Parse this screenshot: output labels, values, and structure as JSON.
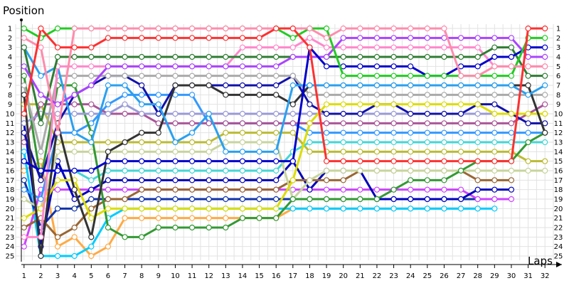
{
  "chart_data": {
    "type": "line",
    "ylabel": "Position",
    "xlabel": "Laps",
    "xlim": [
      0.5,
      32.5
    ],
    "ylim": [
      1,
      25
    ],
    "y_inverted": true,
    "grid": true,
    "x_ticks": [
      "1",
      "2",
      "3",
      "4",
      "5",
      "6",
      "7",
      "8",
      "9",
      "10",
      "11",
      "12",
      "13",
      "14",
      "15",
      "16",
      "17",
      "18",
      "19",
      "20",
      "21",
      "22",
      "23",
      "24",
      "25",
      "26",
      "27",
      "28",
      "29",
      "30",
      "31",
      "32"
    ],
    "y_ticks": [
      "1",
      "2",
      "3",
      "4",
      "5",
      "6",
      "7",
      "8",
      "9",
      "10",
      "11",
      "12",
      "13",
      "14",
      "15",
      "16",
      "17",
      "18",
      "19",
      "20",
      "21",
      "22",
      "23",
      "24",
      "25"
    ],
    "series": [
      {
        "color": "#ff3030",
        "start": 0,
        "positions": [
          10,
          1,
          3,
          3,
          3,
          2,
          2,
          2,
          2,
          2,
          2,
          2,
          2,
          2,
          2,
          1,
          1,
          3,
          15,
          15,
          15,
          15,
          15,
          15,
          15,
          15,
          15,
          15,
          15,
          15,
          1,
          1
        ]
      },
      {
        "color": "#ff8cad",
        "start": 0,
        "positions": [
          2,
          3,
          12,
          1,
          1,
          1,
          1,
          1,
          1,
          1,
          1,
          1,
          1,
          1,
          1,
          1,
          1,
          1,
          2,
          1,
          1,
          1,
          1,
          1,
          1,
          1,
          6,
          6,
          5,
          5,
          5,
          5
        ]
      },
      {
        "color": "#22cc22",
        "start": 0,
        "positions": [
          1,
          2,
          1,
          1,
          1,
          1,
          1,
          1,
          1,
          1,
          1,
          1,
          1,
          1,
          1,
          1,
          2,
          1,
          1,
          6,
          6,
          6,
          6,
          6,
          6,
          6,
          6,
          6,
          6,
          6,
          2,
          2
        ]
      },
      {
        "color": "#0000cc",
        "start": 0,
        "positions": [
          15,
          16,
          16,
          16,
          16,
          15,
          15,
          15,
          15,
          15,
          15,
          15,
          15,
          15,
          15,
          15,
          15,
          3,
          5,
          5,
          5,
          5,
          5,
          5,
          6,
          6,
          5,
          5,
          4,
          4,
          3,
          3
        ]
      },
      {
        "color": "#aa44ff",
        "start": 0,
        "positions": [
          5,
          8,
          9,
          8,
          7,
          5,
          5,
          5,
          5,
          5,
          5,
          5,
          5,
          5,
          5,
          5,
          4,
          4,
          4,
          2,
          2,
          2,
          2,
          2,
          2,
          2,
          2,
          2,
          2,
          2,
          4,
          4
        ]
      },
      {
        "color": "#2e7d32",
        "start": 0,
        "positions": [
          3,
          11,
          4,
          4,
          4,
          4,
          4,
          4,
          4,
          4,
          4,
          4,
          4,
          4,
          4,
          4,
          4,
          4,
          4,
          4,
          4,
          4,
          4,
          4,
          4,
          4,
          4,
          4,
          3,
          3,
          6,
          6
        ]
      },
      {
        "color": "#ff88cc",
        "start": 0,
        "positions": [
          23,
          23,
          5,
          5,
          5,
          5,
          5,
          5,
          5,
          5,
          5,
          5,
          5,
          3,
          3,
          3,
          3,
          2,
          3,
          3,
          3,
          3,
          3,
          3,
          3,
          3,
          3,
          3,
          5,
          5,
          5,
          5
        ]
      },
      {
        "color": "#2aa0f0",
        "start": 0,
        "positions": [
          3,
          6,
          5,
          12,
          13,
          7,
          7,
          9,
          9,
          13,
          12,
          10,
          14,
          14,
          14,
          14,
          7,
          7,
          7,
          7,
          7,
          7,
          7,
          7,
          7,
          7,
          7,
          7,
          7,
          7,
          8,
          7
        ]
      },
      {
        "color": "#333333",
        "start": 0,
        "positions": [
          8,
          25,
          11,
          18,
          23,
          14,
          13,
          12,
          12,
          7,
          7,
          7,
          8,
          8,
          8,
          8,
          9,
          7,
          7,
          7,
          7,
          7,
          7,
          7,
          7,
          7,
          7,
          7,
          7,
          7,
          7,
          12
        ]
      },
      {
        "color": "#aaaaaa",
        "start": 0,
        "positions": [
          7,
          14,
          6,
          6,
          6,
          6,
          6,
          6,
          6,
          6,
          6,
          6,
          6,
          6,
          6,
          6,
          6,
          8,
          8,
          8,
          8,
          8,
          8,
          8,
          8,
          8,
          8,
          8,
          8,
          8,
          8,
          8
        ]
      },
      {
        "color": "#dddd00",
        "start": 0,
        "positions": [
          21,
          20,
          17,
          17,
          21,
          20,
          20,
          20,
          20,
          20,
          20,
          20,
          20,
          20,
          20,
          20,
          17,
          11,
          9,
          9,
          9,
          9,
          9,
          9,
          9,
          9,
          9,
          9,
          10,
          10,
          10,
          10
        ]
      },
      {
        "color": "#1111aa",
        "start": 0,
        "positions": [
          12,
          17,
          11,
          8,
          7,
          6,
          6,
          7,
          10,
          7,
          7,
          7,
          7,
          7,
          7,
          7,
          6,
          9,
          10,
          10,
          10,
          9,
          9,
          10,
          10,
          10,
          10,
          9,
          9,
          10,
          11,
          11
        ]
      },
      {
        "color": "#9a9ad8",
        "start": 0,
        "positions": [
          11,
          10,
          10,
          10,
          10,
          10,
          9,
          10,
          10,
          10,
          10,
          10,
          10,
          10,
          10,
          10,
          10,
          10,
          10,
          10,
          10,
          10,
          10,
          10,
          10,
          10,
          10,
          10,
          10,
          10,
          10,
          10
        ]
      },
      {
        "color": "#339933",
        "start": 0,
        "positions": [
          6,
          17,
          7,
          7,
          12,
          22,
          23,
          23,
          22,
          22,
          22,
          22,
          22,
          21,
          21,
          21,
          19,
          19,
          19,
          19,
          19,
          19,
          18,
          17,
          17,
          17,
          16,
          15,
          15,
          15,
          13,
          12
        ]
      },
      {
        "color": "#aa5599",
        "start": 0,
        "positions": [
          13,
          9,
          9,
          9,
          9,
          10,
          10,
          10,
          11,
          11,
          11,
          11,
          11,
          11,
          11,
          11,
          11,
          11,
          11,
          11,
          11,
          11,
          11,
          11,
          11,
          11,
          11,
          11,
          11,
          11,
          10,
          9
        ]
      },
      {
        "color": "#3399ff",
        "start": 0,
        "positions": [
          18,
          19,
          12,
          12,
          11,
          9,
          8,
          8,
          8,
          8,
          8,
          11,
          11,
          11,
          11,
          11,
          11,
          12,
          12,
          12,
          12,
          12,
          12,
          12,
          12,
          12,
          12,
          12,
          12,
          12,
          12,
          12
        ]
      },
      {
        "color": "#c7d49c",
        "start": 0,
        "positions": [
          19,
          20,
          14,
          14,
          14,
          14,
          14,
          14,
          14,
          14,
          14,
          14,
          13,
          13,
          13,
          13,
          19,
          17,
          16,
          16,
          16,
          16,
          16,
          16,
          16,
          16,
          16,
          16,
          16,
          16,
          16,
          16
        ]
      },
      {
        "color": "#44d6d6",
        "start": 0,
        "positions": [
          15,
          16,
          16,
          16,
          17,
          16,
          16,
          16,
          16,
          16,
          16,
          16,
          16,
          16,
          16,
          16,
          14,
          13,
          13,
          13,
          13,
          13,
          13,
          13,
          13,
          13,
          13,
          13,
          13,
          13,
          13,
          13
        ]
      },
      {
        "color": "#bbbb33",
        "start": 0,
        "positions": [
          9,
          9,
          13,
          13,
          13,
          13,
          13,
          13,
          13,
          13,
          13,
          13,
          12,
          12,
          12,
          12,
          12,
          14,
          14,
          14,
          14,
          14,
          14,
          14,
          14,
          14,
          14,
          14,
          14,
          14,
          15,
          15
        ]
      },
      {
        "color": "#996633",
        "start": 0,
        "positions": [
          22,
          21,
          23,
          22,
          20,
          19,
          19,
          18,
          18,
          18,
          18,
          18,
          18,
          18,
          18,
          18,
          17,
          17,
          17,
          17,
          16,
          16,
          16,
          16,
          16,
          16,
          16,
          17,
          17,
          17,
          null,
          null
        ]
      },
      {
        "color": "#0000bb",
        "start": 0,
        "positions": [
          11,
          24,
          15,
          19,
          18,
          17,
          17,
          17,
          17,
          17,
          17,
          17,
          17,
          17,
          17,
          17,
          15,
          18,
          16,
          16,
          16,
          19,
          19,
          19,
          19,
          19,
          19,
          18,
          18,
          18,
          null,
          null
        ]
      },
      {
        "color": "#cc44ff",
        "start": 0,
        "positions": [
          24,
          18,
          18,
          18,
          18,
          18,
          18,
          18,
          18,
          18,
          18,
          18,
          18,
          18,
          18,
          18,
          18,
          18,
          18,
          18,
          18,
          18,
          18,
          18,
          18,
          18,
          18,
          19,
          19,
          19,
          null,
          null
        ]
      },
      {
        "color": "#1133aa",
        "start": 0,
        "positions": [
          17,
          22,
          20,
          20,
          19,
          19,
          19,
          19,
          19,
          19,
          19,
          19,
          19,
          19,
          19,
          19,
          19,
          19,
          19,
          19,
          19,
          19,
          19,
          19,
          19,
          19,
          19,
          19,
          19,
          null,
          null,
          null
        ]
      },
      {
        "color": "#00ccff",
        "start": 0,
        "positions": [
          14,
          25,
          25,
          25,
          24,
          21,
          20,
          20,
          20,
          20,
          20,
          20,
          20,
          20,
          20,
          20,
          20,
          20,
          20,
          20,
          20,
          20,
          20,
          20,
          20,
          20,
          20,
          20,
          20,
          null,
          null,
          null
        ]
      },
      {
        "color": "#ffaa44",
        "start": 0,
        "positions": [
          16,
          15,
          24,
          23,
          25,
          24,
          21,
          21,
          21,
          21,
          21,
          21,
          21,
          21,
          21,
          21,
          20,
          20,
          20,
          20,
          20,
          20,
          20,
          20,
          20,
          20,
          20,
          20,
          null,
          null,
          null,
          null
        ]
      }
    ]
  }
}
